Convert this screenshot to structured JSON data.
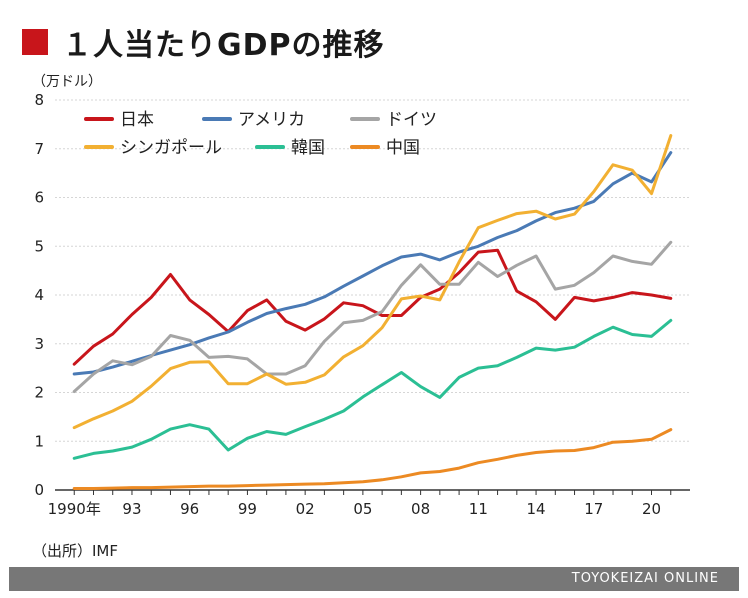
{
  "title": "１人当たりGDPの推移",
  "source": "（出所）IMF",
  "brand": "TOYOKEIZAI ONLINE",
  "chart_data": {
    "type": "line",
    "title": "１人当たりGDPの推移",
    "ylabel": "（万ドル）",
    "xlabel": "",
    "ylim": [
      0,
      8
    ],
    "yticks": [
      "0",
      "1",
      "2",
      "3",
      "4",
      "5",
      "6",
      "7",
      "8"
    ],
    "xticks": [
      {
        "year": 1990,
        "label": "1990年"
      },
      {
        "year": 1993,
        "label": "93"
      },
      {
        "year": 1996,
        "label": "96"
      },
      {
        "year": 1999,
        "label": "99"
      },
      {
        "year": 2002,
        "label": "02"
      },
      {
        "year": 2005,
        "label": "05"
      },
      {
        "year": 2008,
        "label": "08"
      },
      {
        "year": 2011,
        "label": "11"
      },
      {
        "year": 2014,
        "label": "14"
      },
      {
        "year": 2017,
        "label": "17"
      },
      {
        "year": 2020,
        "label": "20"
      }
    ],
    "x": [
      1990,
      1991,
      1992,
      1993,
      1994,
      1995,
      1996,
      1997,
      1998,
      1999,
      2000,
      2001,
      2002,
      2003,
      2004,
      2005,
      2006,
      2007,
      2008,
      2009,
      2010,
      2011,
      2012,
      2013,
      2014,
      2015,
      2016,
      2017,
      2018,
      2019,
      2020,
      2021
    ],
    "legend_position": "top-left",
    "series": [
      {
        "name": "日本",
        "color": "#c8151b",
        "values": [
          2.58,
          2.95,
          3.2,
          3.6,
          3.95,
          4.42,
          3.9,
          3.6,
          3.25,
          3.68,
          3.9,
          3.46,
          3.28,
          3.51,
          3.84,
          3.78,
          3.58,
          3.58,
          3.95,
          4.12,
          4.46,
          4.88,
          4.92,
          4.08,
          3.86,
          3.5,
          3.95,
          3.88,
          3.95,
          4.05,
          4.0,
          3.93
        ]
      },
      {
        "name": "アメリカ",
        "color": "#4a7ab5",
        "values": [
          2.38,
          2.42,
          2.52,
          2.64,
          2.76,
          2.87,
          2.98,
          3.12,
          3.24,
          3.44,
          3.62,
          3.72,
          3.81,
          3.96,
          4.18,
          4.39,
          4.6,
          4.78,
          4.84,
          4.72,
          4.88,
          5.0,
          5.18,
          5.32,
          5.52,
          5.69,
          5.78,
          5.92,
          6.28,
          6.5,
          6.32,
          6.92
        ]
      },
      {
        "name": "ドイツ",
        "color": "#a5a5a5",
        "values": [
          2.02,
          2.38,
          2.65,
          2.57,
          2.74,
          3.17,
          3.07,
          2.72,
          2.74,
          2.69,
          2.38,
          2.38,
          2.55,
          3.05,
          3.43,
          3.48,
          3.66,
          4.2,
          4.62,
          4.22,
          4.22,
          4.67,
          4.38,
          4.61,
          4.8,
          4.12,
          4.2,
          4.46,
          4.8,
          4.69,
          4.63,
          5.08
        ]
      },
      {
        "name": "シンガポール",
        "color": "#f2b032",
        "values": [
          1.28,
          1.46,
          1.62,
          1.82,
          2.13,
          2.49,
          2.62,
          2.63,
          2.18,
          2.18,
          2.38,
          2.17,
          2.21,
          2.36,
          2.73,
          2.96,
          3.33,
          3.92,
          3.98,
          3.9,
          4.68,
          5.38,
          5.53,
          5.67,
          5.72,
          5.56,
          5.66,
          6.12,
          6.67,
          6.56,
          6.08,
          7.27
        ]
      },
      {
        "name": "韓国",
        "color": "#2bbf94",
        "values": [
          0.65,
          0.75,
          0.8,
          0.88,
          1.04,
          1.25,
          1.34,
          1.25,
          0.82,
          1.06,
          1.2,
          1.14,
          1.3,
          1.45,
          1.62,
          1.91,
          2.16,
          2.41,
          2.12,
          1.9,
          2.31,
          2.5,
          2.55,
          2.72,
          2.91,
          2.87,
          2.93,
          3.15,
          3.34,
          3.19,
          3.15,
          3.48
        ]
      },
      {
        "name": "中国",
        "color": "#ec8a23",
        "values": [
          0.03,
          0.03,
          0.04,
          0.05,
          0.05,
          0.06,
          0.07,
          0.08,
          0.08,
          0.09,
          0.1,
          0.11,
          0.12,
          0.13,
          0.15,
          0.17,
          0.21,
          0.27,
          0.35,
          0.38,
          0.45,
          0.56,
          0.63,
          0.71,
          0.77,
          0.8,
          0.81,
          0.87,
          0.98,
          1.0,
          1.04,
          1.24
        ]
      }
    ]
  }
}
